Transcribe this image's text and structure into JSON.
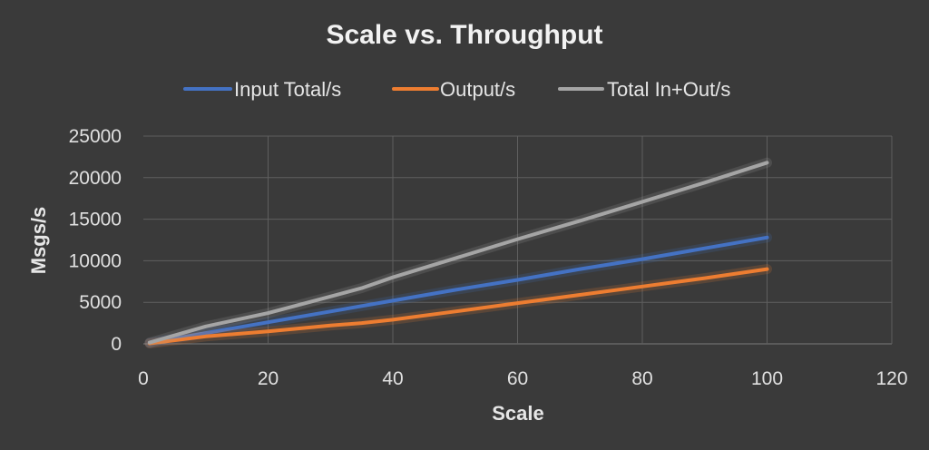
{
  "chart_data": {
    "type": "line",
    "title": "Scale vs. Throughput",
    "xlabel": "Scale",
    "ylabel": "Msgs/s",
    "xlim": [
      0,
      120
    ],
    "ylim": [
      0,
      25000
    ],
    "xticks": [
      0,
      20,
      40,
      60,
      80,
      100,
      120
    ],
    "yticks": [
      0,
      5000,
      10000,
      15000,
      20000,
      25000
    ],
    "grid": true,
    "legend_position": "top",
    "series": [
      {
        "name": "Input Total/s",
        "color": "#4472c4",
        "x": [
          1,
          10,
          20,
          30,
          40,
          50,
          60,
          70,
          80,
          90,
          100
        ],
        "y": [
          100,
          1300,
          2600,
          3900,
          5200,
          6500,
          7700,
          9000,
          10200,
          11500,
          12800
        ]
      },
      {
        "name": "Output/s",
        "color": "#ed7d31",
        "x": [
          1,
          10,
          20,
          30,
          35,
          40,
          50,
          60,
          70,
          80,
          90,
          100
        ],
        "y": [
          50,
          900,
          1500,
          2200,
          2500,
          2900,
          3900,
          4900,
          5900,
          6900,
          7900,
          9000
        ]
      },
      {
        "name": "Total In+Out/s",
        "color": "#a5a5a5",
        "x": [
          1,
          10,
          20,
          30,
          35,
          40,
          50,
          60,
          70,
          80,
          90,
          100
        ],
        "y": [
          150,
          2100,
          3700,
          5700,
          6700,
          8000,
          10300,
          12600,
          14800,
          17100,
          19400,
          21800
        ]
      }
    ]
  }
}
